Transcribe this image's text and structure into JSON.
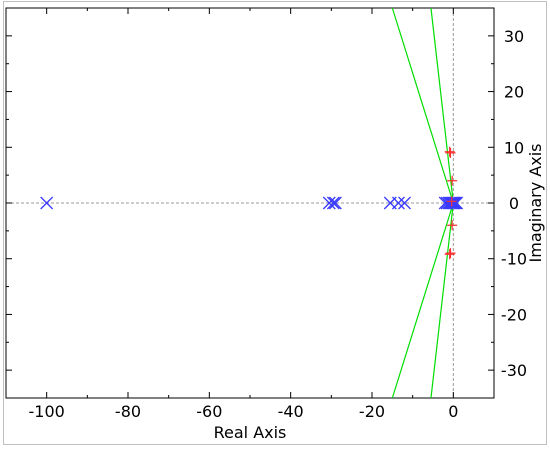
{
  "chart_data": {
    "type": "scatter",
    "xlabel": "Real Axis",
    "ylabel": "Imaginary Axis",
    "xlim": [
      -110,
      10
    ],
    "ylim": [
      -35,
      35
    ],
    "x_ticks": [
      -100,
      -80,
      -60,
      -40,
      -20,
      0
    ],
    "y_ticks": [
      -30,
      -20,
      -10,
      0,
      10,
      20,
      30
    ],
    "x_tick_labels": [
      "-100",
      "-80",
      "-60",
      "-40",
      "-20",
      "0"
    ],
    "y_tick_labels": [
      "-30",
      "-20",
      "-10",
      "0",
      "10",
      "20",
      "30"
    ],
    "grid": false,
    "reference_lines": [
      {
        "orientation": "horizontal",
        "value": 0
      },
      {
        "orientation": "vertical",
        "value": 0
      }
    ],
    "series": [
      {
        "marker": "x",
        "color": "#3a3aff",
        "points": [
          [
            -100,
            0
          ],
          [
            -30.5,
            0
          ],
          [
            -29.5,
            0
          ],
          [
            -29,
            0
          ],
          [
            -15.5,
            0
          ],
          [
            -13.5,
            0
          ],
          [
            -12,
            0
          ],
          [
            -2,
            0
          ],
          [
            -1.5,
            0
          ],
          [
            -1,
            0
          ],
          [
            -0.7,
            0
          ],
          [
            -0.4,
            0
          ],
          [
            -0.1,
            0
          ],
          [
            0.2,
            0
          ],
          [
            0.5,
            0
          ],
          [
            0.8,
            0
          ]
        ]
      },
      {
        "marker": "+",
        "color": "#ff3030",
        "points": [
          [
            -0.7,
            9
          ],
          [
            -0.9,
            9.2
          ],
          [
            -0.3,
            4
          ],
          [
            -0.3,
            -4
          ],
          [
            -0.7,
            -9
          ],
          [
            -0.9,
            -9.2
          ],
          [
            -0.4,
            0.3
          ]
        ]
      },
      {
        "marker": "line",
        "color": "#00dd00",
        "lines": [
          [
            [
              -15,
              -35
            ],
            [
              0,
              0
            ]
          ],
          [
            [
              0,
              0
            ],
            [
              -15,
              35
            ]
          ],
          [
            [
              -5.5,
              -35
            ],
            [
              0,
              0
            ]
          ],
          [
            [
              0,
              0
            ],
            [
              -5.5,
              35
            ]
          ]
        ]
      }
    ]
  }
}
